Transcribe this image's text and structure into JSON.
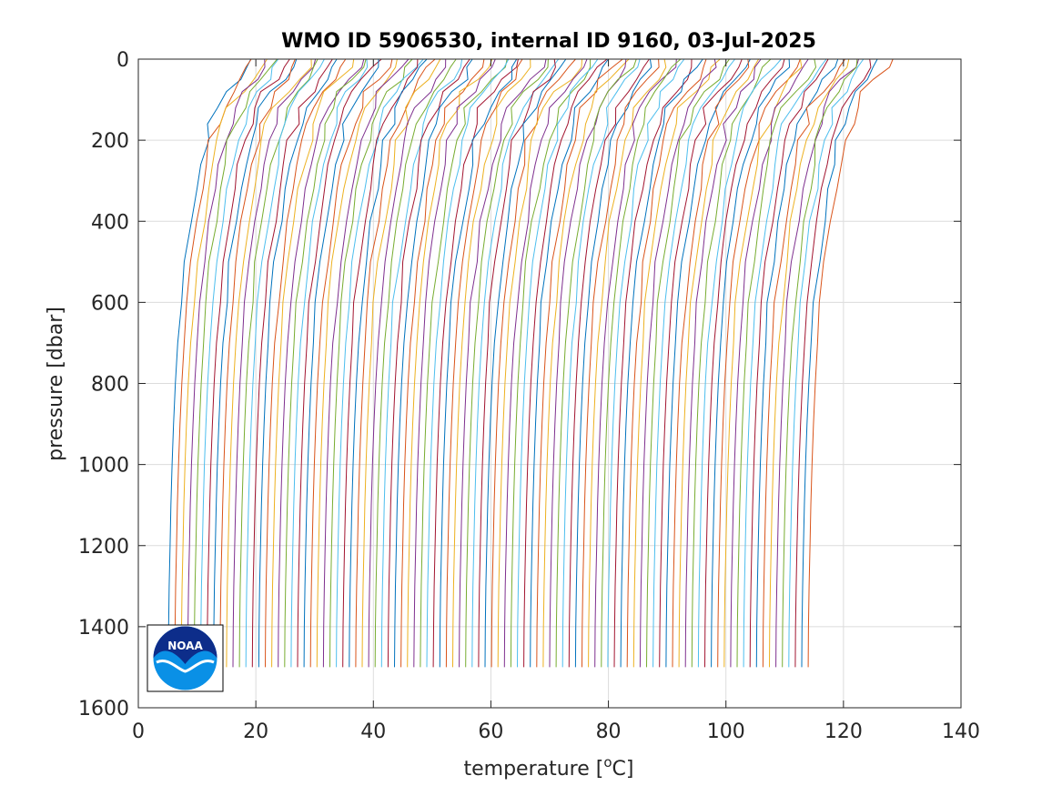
{
  "chart_data": {
    "type": "line",
    "title": "WMO ID 5906530, internal ID 9160, 03-Jul-2025",
    "xlabel": "temperature [",
    "xlabel_sup": "o",
    "xlabel_tail": "C]",
    "ylabel": "pressure [dbar]",
    "xlim": [
      0,
      140
    ],
    "ylim": [
      0,
      1600
    ],
    "y_reversed": true,
    "grid": true,
    "x_ticks": [
      "0",
      "20",
      "40",
      "60",
      "80",
      "100",
      "120",
      "140"
    ],
    "y_ticks": [
      "0",
      "200",
      "400",
      "600",
      "800",
      "1000",
      "1200",
      "1400",
      "1600"
    ],
    "profile_count": 100,
    "profile_offset_start": 3.7,
    "profile_offset_step": 1.1,
    "profile_pressure": [
      0,
      20,
      50,
      80,
      120,
      160,
      200,
      260,
      320,
      400,
      500,
      600,
      700,
      800,
      900,
      1000,
      1100,
      1200,
      1300,
      1400,
      1500
    ],
    "profile_base_temperature": [
      13.5,
      13.2,
      12.5,
      11.0,
      9.5,
      8.6,
      7.7,
      6.8,
      6.1,
      5.2,
      4.2,
      3.5,
      3.0,
      2.6,
      2.3,
      2.05,
      1.85,
      1.7,
      1.55,
      1.45,
      1.4
    ],
    "series_colors": [
      "#0072BD",
      "#D95319",
      "#EDB120",
      "#7E2F8E",
      "#77AC30",
      "#4DBEEE",
      "#A2142F"
    ],
    "logo_text": "NOAA"
  }
}
